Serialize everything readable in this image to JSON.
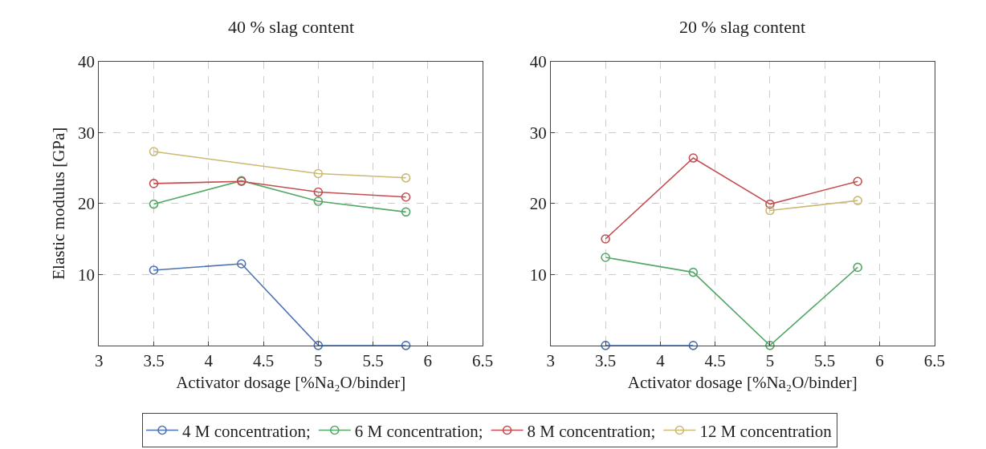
{
  "chart_data": [
    {
      "type": "line",
      "title": "40 % slag content",
      "xlabel": "Activator dosage [%Na₂O/binder]",
      "ylabel": "Elastic modulus [GPa]",
      "xlim": [
        3,
        6.5
      ],
      "xticks": [
        3,
        3.5,
        4,
        4.5,
        5,
        5.5,
        6,
        6.5
      ],
      "ylim": [
        0,
        40
      ],
      "yticks": [
        10,
        20,
        30,
        40
      ],
      "grid": true,
      "marker": "circle",
      "line_style": "solid",
      "legend": "bottom",
      "series": [
        {
          "name": "4 M concentration;",
          "color": "#4c72b0",
          "x": [
            3.5,
            4.3,
            5,
            5.8
          ],
          "values": [
            10.6,
            11.5,
            0,
            0
          ]
        },
        {
          "name": "6 M concentration;",
          "color": "#55a868",
          "x": [
            3.5,
            4.3,
            5,
            5.8
          ],
          "values": [
            19.9,
            23.2,
            20.3,
            18.8
          ]
        },
        {
          "name": "8 M concentration;",
          "color": "#c44e52",
          "x": [
            3.5,
            4.3,
            5,
            5.8
          ],
          "values": [
            22.8,
            23.1,
            21.6,
            20.9
          ]
        },
        {
          "name": "12 M concentration",
          "color": "#ccb974",
          "x": [
            3.5,
            5,
            5.8
          ],
          "values": [
            27.3,
            24.2,
            23.6
          ]
        }
      ]
    },
    {
      "type": "line",
      "title": "20 % slag content",
      "xlabel": "Activator dosage [%Na₂O/binder]",
      "xlim": [
        3,
        6.5
      ],
      "xticks": [
        3,
        3.5,
        4,
        4.5,
        5,
        5.5,
        6,
        6.5
      ],
      "ylim": [
        0,
        40
      ],
      "yticks": [
        10,
        20,
        30,
        40
      ],
      "grid": true,
      "marker": "circle",
      "line_style": "solid",
      "series": [
        {
          "color": "#4c72b0",
          "x": [
            3.5,
            4.3
          ],
          "values": [
            0,
            0
          ]
        },
        {
          "color": "#55a868",
          "x": [
            3.5,
            4.3,
            5,
            5.8
          ],
          "values": [
            12.4,
            10.3,
            0,
            11.0
          ]
        },
        {
          "color": "#c44e52",
          "x": [
            3.5,
            4.3,
            5,
            5.8
          ],
          "values": [
            15.0,
            26.4,
            19.9,
            23.1
          ]
        },
        {
          "color": "#ccb974",
          "x": [
            5,
            5.8
          ],
          "values": [
            19.0,
            20.4
          ]
        }
      ]
    }
  ]
}
